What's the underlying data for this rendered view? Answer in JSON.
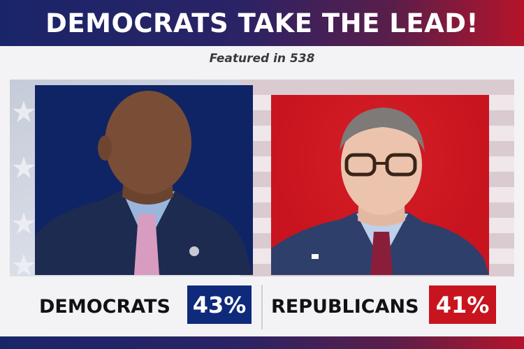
{
  "header": {
    "title": "DEMOCRATS TAKE THE LEAD!"
  },
  "subtitle": "Featured in 538",
  "colors": {
    "democrat_blue": "#0f2a7a",
    "republican_red": "#c8141f",
    "header_gradient_start": "#1a2569",
    "header_gradient_end": "#b5142a"
  },
  "candidates": [
    {
      "party_label": "DEMOCRATS",
      "percent": "43%",
      "percent_value": 43
    },
    {
      "party_label": "REPUBLICANS",
      "percent": "41%",
      "percent_value": 41
    }
  ]
}
